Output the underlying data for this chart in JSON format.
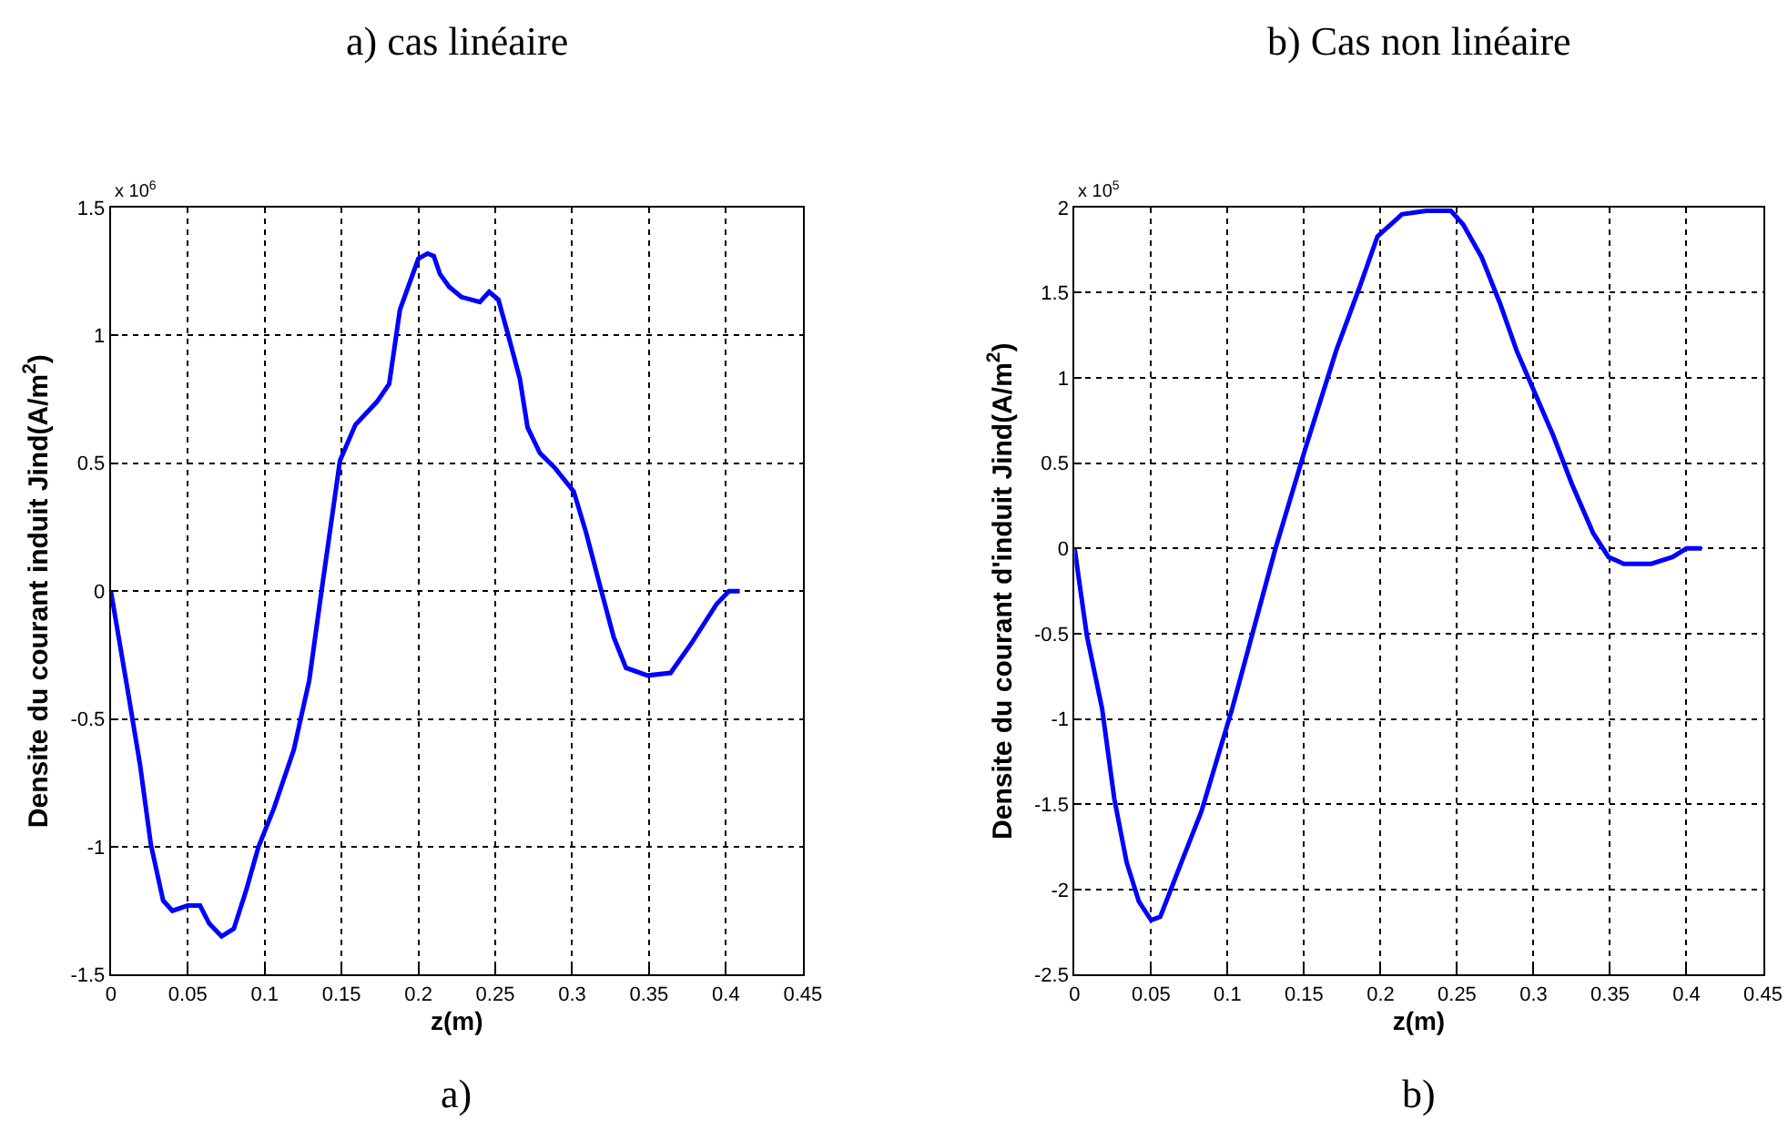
{
  "chart_data": [
    {
      "type": "line",
      "title": "a) cas linéaire",
      "xlabel": "z(m)",
      "ylabel": "Densite du courant induit Jind(A/m$^{2}$)",
      "annotations": [
        "x 10$^{6}$",
        "a)"
      ],
      "color": "#0000ff",
      "grid": true,
      "line_style": "solid",
      "marker": "none",
      "xlim": [
        0,
        0.45
      ],
      "xticks": [
        0,
        0.05,
        0.1,
        0.15,
        0.2,
        0.25,
        0.3,
        0.35,
        0.4,
        0.45
      ],
      "ylim": [
        -1.5,
        1.5
      ],
      "yticks": [
        -1.5,
        -1,
        -0.5,
        0,
        0.5,
        1,
        1.5
      ],
      "x": [
        0,
        0.011,
        0.019,
        0.026,
        0.034,
        0.04,
        0.05,
        0.058,
        0.064,
        0.072,
        0.08,
        0.088,
        0.096,
        0.106,
        0.119,
        0.129,
        0.137,
        0.149,
        0.159,
        0.173,
        0.181,
        0.188,
        0.2,
        0.206,
        0.21,
        0.214,
        0.22,
        0.228,
        0.24,
        0.246,
        0.252,
        0.258,
        0.266,
        0.271,
        0.279,
        0.289,
        0.301,
        0.309,
        0.319,
        0.327,
        0.335,
        0.349,
        0.364,
        0.378,
        0.394,
        0.402,
        0.409
      ],
      "values": [
        0,
        -0.39,
        -0.68,
        -0.99,
        -1.21,
        -1.25,
        -1.23,
        -1.23,
        -1.3,
        -1.35,
        -1.32,
        -1.17,
        -1.0,
        -0.85,
        -0.62,
        -0.35,
        0,
        0.51,
        0.65,
        0.74,
        0.81,
        1.1,
        1.3,
        1.32,
        1.31,
        1.24,
        1.19,
        1.15,
        1.13,
        1.17,
        1.14,
        1.01,
        0.83,
        0.64,
        0.54,
        0.48,
        0.39,
        0.23,
        0,
        -0.18,
        -0.3,
        -0.33,
        -0.32,
        -0.2,
        -0.05,
        0,
        0
      ]
    },
    {
      "type": "line",
      "title": "b) Cas non linéaire",
      "xlabel": "z(m)",
      "ylabel": "Densite du courant d'induit Jind(A/m$^{2}$)",
      "annotations": [
        "x 10$^{5}$",
        "b)"
      ],
      "color": "#0000ff",
      "grid": true,
      "line_style": "solid",
      "marker": "none",
      "xlim": [
        0,
        0.45
      ],
      "xticks": [
        0,
        0.05,
        0.1,
        0.15,
        0.2,
        0.25,
        0.3,
        0.35,
        0.4,
        0.45
      ],
      "ylim": [
        -2.5,
        2
      ],
      "yticks": [
        -2.5,
        -2,
        -1.5,
        -1,
        -0.5,
        0,
        0.5,
        1,
        1.5,
        2
      ],
      "x": [
        0,
        0.008,
        0.018,
        0.026,
        0.034,
        0.042,
        0.05,
        0.056,
        0.069,
        0.083,
        0.103,
        0.131,
        0.151,
        0.171,
        0.187,
        0.198,
        0.214,
        0.23,
        0.246,
        0.254,
        0.266,
        0.278,
        0.289,
        0.301,
        0.313,
        0.325,
        0.339,
        0.349,
        0.359,
        0.377,
        0.391,
        0.4,
        0.41
      ],
      "values": [
        0,
        -0.51,
        -0.94,
        -1.47,
        -1.84,
        -2.07,
        -2.18,
        -2.16,
        -1.86,
        -1.54,
        -0.94,
        -0.01,
        0.59,
        1.16,
        1.55,
        1.83,
        1.96,
        1.98,
        1.98,
        1.9,
        1.71,
        1.44,
        1.16,
        0.91,
        0.66,
        0.38,
        0.09,
        -0.05,
        -0.09,
        -0.09,
        -0.05,
        0,
        0
      ]
    }
  ]
}
